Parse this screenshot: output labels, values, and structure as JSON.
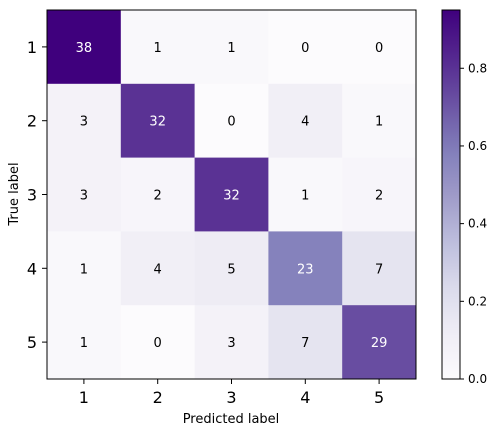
{
  "chart_data": {
    "type": "heatmap",
    "title": "",
    "xlabel": "Predicted label",
    "ylabel": "True label",
    "x_categories": [
      "1",
      "2",
      "3",
      "4",
      "5"
    ],
    "y_categories": [
      "1",
      "2",
      "3",
      "4",
      "5"
    ],
    "counts": [
      [
        38,
        1,
        1,
        0,
        0
      ],
      [
        3,
        32,
        0,
        4,
        1
      ],
      [
        3,
        2,
        32,
        1,
        2
      ],
      [
        1,
        4,
        5,
        23,
        7
      ],
      [
        1,
        0,
        3,
        7,
        29
      ]
    ],
    "colormap": "Purples",
    "color_low": "#fcfbfd",
    "color_high": "#3f007d",
    "colorbar": {
      "range": [
        0,
        0.95
      ],
      "ticks": [
        "0.0",
        "0.2",
        "0.4",
        "0.6",
        "0.8"
      ]
    },
    "grid": false
  }
}
